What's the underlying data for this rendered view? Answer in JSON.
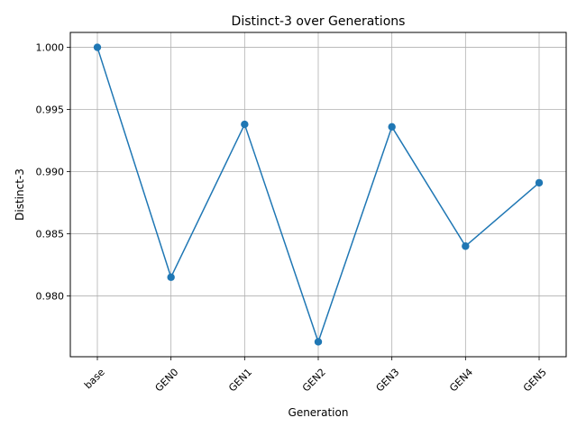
{
  "chart_data": {
    "type": "line",
    "title": "Distinct-3 over Generations",
    "xlabel": "Generation",
    "ylabel": "Distinct-3",
    "categories": [
      "base",
      "GEN0",
      "GEN1",
      "GEN2",
      "GEN3",
      "GEN4",
      "GEN5"
    ],
    "series": [
      {
        "values": [
          1.0,
          0.9815,
          0.9938,
          0.9763,
          0.9936,
          0.984,
          0.9891
        ]
      }
    ],
    "ylim": [
      0.9751,
      1.0012
    ],
    "yticks": [
      "0.980",
      "0.985",
      "0.990",
      "0.995",
      "1.000"
    ],
    "ytick_values": [
      0.98,
      0.985,
      0.99,
      0.995,
      1.0
    ],
    "grid": true,
    "legend": "none",
    "x_tick_rotation_deg": 45,
    "colors": {
      "line": "#1f77b4",
      "marker": "#1f77b4",
      "grid": "#b0b0b0",
      "axes": "#000000"
    }
  }
}
